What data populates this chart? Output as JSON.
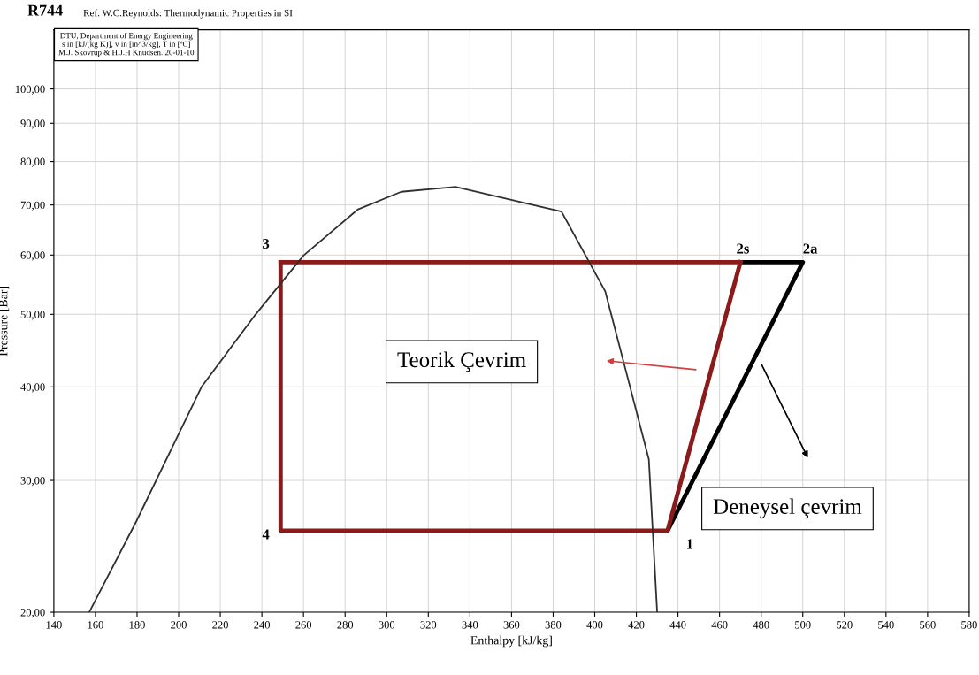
{
  "chart_data": {
    "type": "line",
    "title": "R744",
    "subtitle": "Ref. W.C.Reynolds: Thermodynamic Properties in SI",
    "xlabel": "Enthalpy [kJ/kg]",
    "ylabel": "Pressure [Bar]",
    "xlim": [
      140,
      580
    ],
    "ylim": [
      20,
      120
    ],
    "log": "y",
    "grid": true,
    "line_style": "solid",
    "marker": "none",
    "xticks": [
      140,
      160,
      180,
      200,
      220,
      240,
      260,
      280,
      300,
      320,
      340,
      360,
      380,
      400,
      420,
      440,
      460,
      480,
      500,
      520,
      540,
      560,
      580
    ],
    "yticks": [
      {
        "value": 20,
        "label": "20,00"
      },
      {
        "value": 30,
        "label": "30,00"
      },
      {
        "value": 40,
        "label": "40,00"
      },
      {
        "value": 50,
        "label": "50,00"
      },
      {
        "value": 60,
        "label": "60,00"
      },
      {
        "value": 70,
        "label": "70,00"
      },
      {
        "value": 80,
        "label": "80,00"
      },
      {
        "value": 90,
        "label": "90,00"
      },
      {
        "value": 100,
        "label": "100,00"
      }
    ],
    "series": [
      {
        "color": "#303030",
        "x": [
          157,
          179.5,
          211,
          237,
          260,
          286,
          307,
          333,
          384,
          405,
          415,
          426,
          430
        ],
        "values": [
          20,
          26.4,
          40,
          50,
          59.9,
          69,
          72.9,
          74,
          68.6,
          53.7,
          42,
          32,
          20
        ]
      },
      {
        "color": "#8b1a1a",
        "x": [
          249,
          249,
          435,
          470
        ],
        "values": [
          58.7,
          25.7,
          25.7,
          58.7
        ]
      },
      {
        "color": "#8b1a1a",
        "x": [
          470,
          249
        ],
        "values": [
          58.7,
          58.7
        ]
      },
      {
        "color": "#000000",
        "x": [
          435,
          500,
          470
        ],
        "values": [
          25.7,
          58.7,
          58.7
        ]
      }
    ],
    "annotations": [
      "DTU, Department of Energy Engineering\ns in [kJ/(kg K)], v in [m^3/kg], T in [ºC]\nM.J. Skovrup & H.J.H Knudsen. 20-01-10",
      {
        "text": "1",
        "x": 435,
        "y": 25.7
      },
      {
        "text": "2s",
        "x": 470,
        "y": 58.7
      },
      {
        "text": "2a",
        "x": 500,
        "y": 58.7
      },
      {
        "text": "3",
        "x": 249,
        "y": 58.7
      },
      {
        "text": "4",
        "x": 249,
        "y": 25.7
      },
      "Teorik Çevrim",
      "Deneysel çevrim"
    ]
  }
}
